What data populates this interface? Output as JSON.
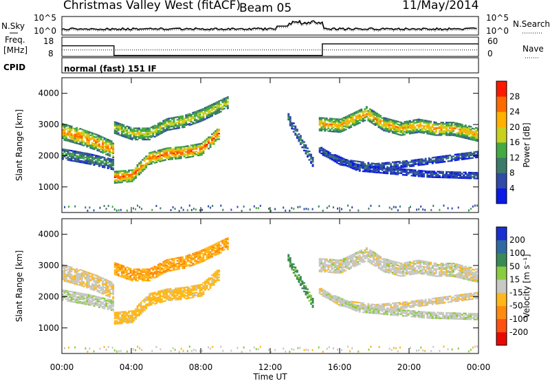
{
  "header": {
    "station": "Christmas Valley West (fitACF)",
    "beam": "Beam 05",
    "date": "11/May/2014"
  },
  "sky_panel": {
    "left_label": "N.Sky",
    "right_label": "N.Search",
    "left_ticks": [
      "10^5",
      "10^0"
    ],
    "right_ticks": [
      "10^5",
      "10^0"
    ]
  },
  "freq_panel": {
    "left_label_line1": "Freq.",
    "left_label_line2": "[MHz]",
    "right_label": "Nave",
    "left_ticks": [
      "18",
      "8"
    ],
    "right_ticks": [
      "60",
      "0"
    ]
  },
  "cpid": {
    "label": "CPID",
    "mode": "normal (fast) 151 IF"
  },
  "time_axis": {
    "label": "Time UT",
    "ticks": [
      "00:00",
      "04:00",
      "08:00",
      "12:00",
      "16:00",
      "20:00",
      "00:00"
    ]
  },
  "range_axis": {
    "label": "Slant Range [km]",
    "ticks": [
      "1000",
      "2000",
      "3000",
      "4000"
    ]
  },
  "power_scale": {
    "label": "Power [dB]",
    "ticks": [
      "4",
      "8",
      "12",
      "16",
      "20",
      "24",
      "28"
    ],
    "colors": [
      "#0a1ae8",
      "#2f4aa8",
      "#3d7a6a",
      "#44aa44",
      "#c8d020",
      "#ffb000",
      "#ff6a00",
      "#ff1800"
    ]
  },
  "velocity_scale": {
    "label": "Velocity [m s⁻¹]",
    "ticks": [
      "200",
      "100",
      "50",
      "15",
      "-15",
      "-50",
      "-100",
      "-200"
    ],
    "colors": [
      "#1a2fd0",
      "#2f6aa0",
      "#3a8a55",
      "#8acc40",
      "#c8c8c4",
      "#ffb81a",
      "#ff8a10",
      "#ff5010",
      "#e80a00"
    ]
  },
  "chart_data": {
    "type": "heatmap",
    "xlabel": "Time UT",
    "ylabel": "Slant Range [km]",
    "xlim": [
      0,
      24
    ],
    "ylim": [
      180,
      4500
    ],
    "panels": [
      "Power [dB]",
      "Velocity [m s⁻¹]"
    ],
    "power_range": [
      0,
      30
    ],
    "velocity_range": [
      -200,
      200
    ],
    "echo_bands": [
      {
        "name": "band-a",
        "t": [
          0,
          1,
          2,
          3
        ],
        "r": [
          2750,
          2600,
          2400,
          2150
        ],
        "width": 500,
        "power": 24,
        "velocity": -8
      },
      {
        "name": "band-b",
        "t": [
          0,
          1.5,
          3
        ],
        "r": [
          2050,
          1900,
          1700
        ],
        "width": 350,
        "power": 12,
        "velocity": 5
      },
      {
        "name": "band-c",
        "t": [
          3,
          4,
          5,
          6,
          7,
          8,
          9
        ],
        "r": [
          1300,
          1350,
          1900,
          2050,
          2100,
          2200,
          2700
        ],
        "width": 380,
        "power": 26,
        "velocity": -30
      },
      {
        "name": "band-d",
        "t": [
          3,
          4,
          5,
          6,
          7,
          8,
          9.5
        ],
        "r": [
          2900,
          2700,
          2700,
          3000,
          3100,
          3300,
          3700
        ],
        "width": 400,
        "power": 18,
        "velocity": -45
      },
      {
        "name": "band-e",
        "t": [
          13.0,
          13.5,
          14.0,
          14.4
        ],
        "r": [
          3200,
          2700,
          2200,
          1800
        ],
        "width": 300,
        "power": 10,
        "velocity": 60
      },
      {
        "name": "band-f",
        "t": [
          14.8,
          16,
          17.5,
          18.5,
          19.5,
          20.5,
          21.5,
          22.5,
          24
        ],
        "r": [
          3000,
          2950,
          3350,
          3000,
          2850,
          2950,
          2850,
          2850,
          2650
        ],
        "width": 420,
        "power": 22,
        "velocity": 0
      },
      {
        "name": "band-g",
        "t": [
          14.8,
          16,
          18,
          20,
          22,
          24
        ],
        "r": [
          2200,
          1800,
          1650,
          1750,
          1900,
          2050
        ],
        "width": 220,
        "power": 8,
        "velocity": -5
      },
      {
        "name": "band-h",
        "t": [
          15,
          17,
          19,
          21,
          24
        ],
        "r": [
          2100,
          1600,
          1500,
          1400,
          1350
        ],
        "width": 200,
        "power": 7,
        "velocity": 5
      }
    ],
    "frequency_mhz": [
      {
        "t": [
          0,
          3
        ],
        "value": 13.5
      },
      {
        "t": [
          3,
          15
        ],
        "value": 8.5
      },
      {
        "t": [
          15,
          24
        ],
        "value": 14.5
      }
    ],
    "nave": [
      {
        "t": [
          0,
          24
        ],
        "value": 20
      }
    ]
  }
}
